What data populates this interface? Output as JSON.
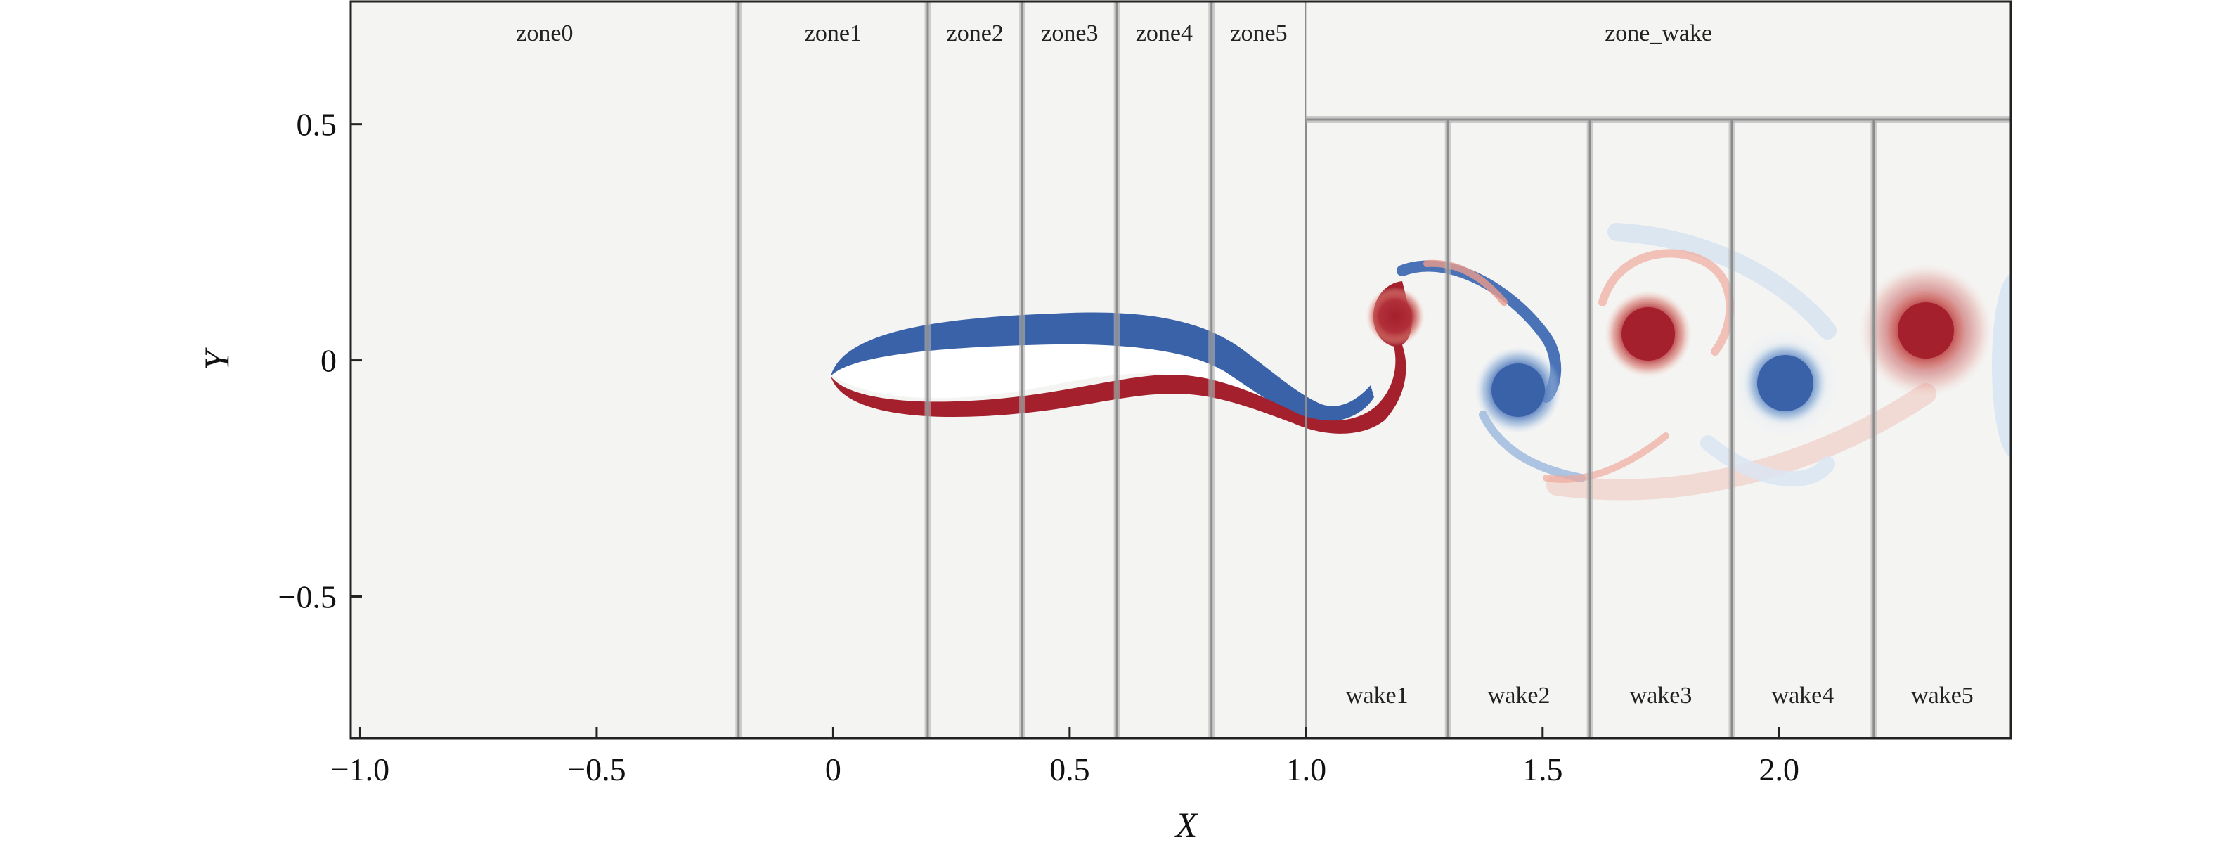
{
  "axes": {
    "xlabel": "X",
    "ylabel": "Y",
    "xlim": [
      -1.02,
      2.49
    ],
    "ylim": [
      -0.8,
      0.76
    ],
    "xticks": [
      {
        "value": -1.0,
        "label": "−1.0"
      },
      {
        "value": -0.5,
        "label": "−0.5"
      },
      {
        "value": 0,
        "label": "0"
      },
      {
        "value": 0.5,
        "label": "0.5"
      },
      {
        "value": 1.0,
        "label": "1.0"
      },
      {
        "value": 1.5,
        "label": "1.5"
      },
      {
        "value": 2.0,
        "label": "2.0"
      }
    ],
    "yticks": [
      {
        "value": 0.5,
        "label": "0.5"
      },
      {
        "value": 0,
        "label": "0"
      },
      {
        "value": -0.5,
        "label": "−0.5"
      }
    ]
  },
  "zones": [
    {
      "label": "zone0",
      "x_start": -1.02,
      "x_end": -0.2
    },
    {
      "label": "zone1",
      "x_start": -0.2,
      "x_end": 0.2
    },
    {
      "label": "zone2",
      "x_start": 0.2,
      "x_end": 0.4
    },
    {
      "label": "zone3",
      "x_start": 0.4,
      "x_end": 0.6
    },
    {
      "label": "zone4",
      "x_start": 0.6,
      "x_end": 0.8
    },
    {
      "label": "zone5",
      "x_start": 0.8,
      "x_end": 1.0
    }
  ],
  "zone_wake": {
    "label": "zone_wake",
    "x_start": 1.0,
    "x_end": 2.49,
    "y_boundary": 0.51
  },
  "wake_zones": [
    {
      "label": "wake1",
      "x_start": 1.0,
      "x_end": 1.3
    },
    {
      "label": "wake2",
      "x_start": 1.3,
      "x_end": 1.6
    },
    {
      "label": "wake3",
      "x_start": 1.6,
      "x_end": 1.9
    },
    {
      "label": "wake4",
      "x_start": 1.9,
      "x_end": 2.2
    },
    {
      "label": "wake5",
      "x_start": 2.2,
      "x_end": 2.49
    }
  ],
  "colors": {
    "background": "#f4f4f3",
    "positive_vorticity": "#a3202c",
    "negative_vorticity": "#3a62a8",
    "zone_line": "#8c8c8c",
    "frame": "#222222"
  }
}
